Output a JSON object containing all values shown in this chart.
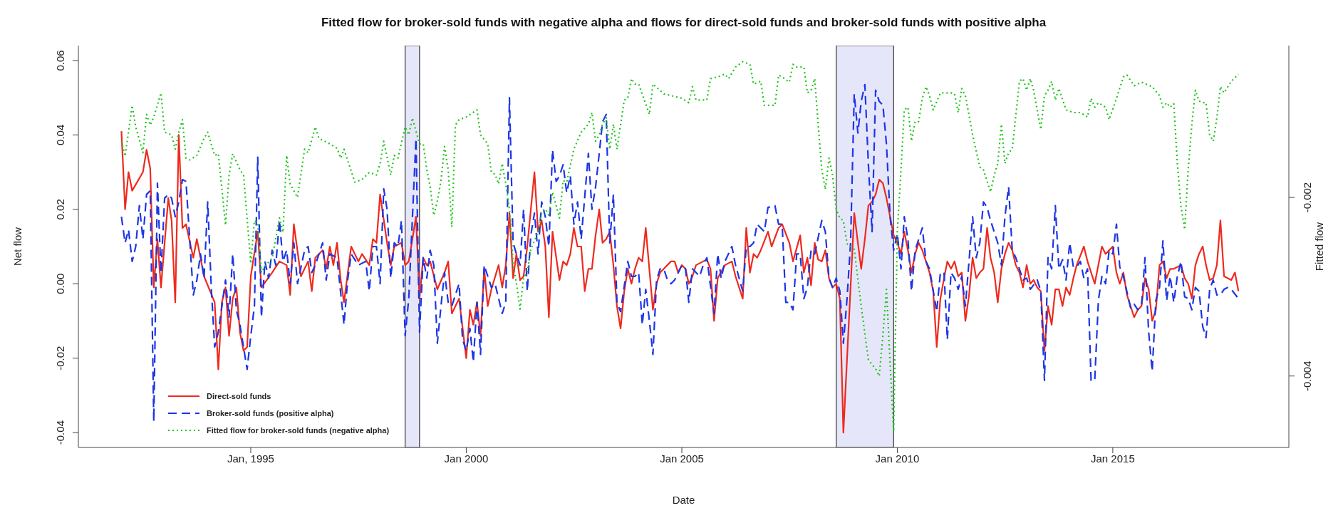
{
  "chart_data": {
    "type": "line",
    "title": "Fitted flow for broker-sold funds with negative alpha and flows for direct-sold funds and broker-sold funds with positive alpha",
    "xlabel": "Date",
    "ylabel": "Net flow",
    "y2label": "Fitted flow",
    "xlim": [
      "1991-01",
      "2019-02"
    ],
    "xticks": [
      {
        "value": "1995-01",
        "label": "Jan, 1995"
      },
      {
        "value": "2000-01",
        "label": "Jan 2000"
      },
      {
        "value": "2005-01",
        "label": "Jan 2005"
      },
      {
        "value": "2010-01",
        "label": "Jan 2010"
      },
      {
        "value": "2015-01",
        "label": "Jan 2015"
      }
    ],
    "ylim": [
      -0.044,
      0.064
    ],
    "yticks": [
      -0.04,
      -0.02,
      {
        "value": 0,
        "label": "0.00"
      },
      0.02,
      0.04,
      0.06
    ],
    "y2lim": [
      -0.0048,
      -0.0003
    ],
    "y2ticks": [
      -0.004,
      -0.002
    ],
    "grid": false,
    "legend": "bottom left",
    "bands": [
      {
        "axis": "x",
        "from": "1998-08",
        "to": "1998-12",
        "color": "#e6e6fa"
      },
      {
        "axis": "x",
        "from": "2008-08",
        "to": "2009-12",
        "color": "#e6e6fa"
      }
    ],
    "series": [
      {
        "name": "Direct-sold funds",
        "color": "#ee2a1e",
        "line_style": "solid",
        "x": [
          "1992-01",
          "1992-02",
          "1992-03",
          "1992-04",
          "1992-07",
          "1992-08",
          "1992-09",
          "1992-10",
          "1992-11",
          "1992-12",
          "1993-02",
          "1993-03",
          "1993-04",
          "1993-05",
          "1993-06",
          "1993-07",
          "1993-09",
          "1993-10",
          "1993-12",
          "1994-03",
          "1994-04",
          "1994-05",
          "1994-06",
          "1994-07",
          "1994-08",
          "1994-09",
          "1994-10",
          "1994-11",
          "1994-12",
          "1995-01",
          "1995-03",
          "1995-04",
          "1995-07",
          "1995-09",
          "1995-11",
          "1995-12",
          "1996-01",
          "1996-03",
          "1996-05",
          "1996-06",
          "1996-07",
          "1996-09",
          "1996-10",
          "1996-11",
          "1996-12",
          "1997-01",
          "1997-02",
          "1997-03",
          "1997-05",
          "1997-07",
          "1997-08",
          "1997-10",
          "1997-11",
          "1997-12",
          "1998-01",
          "1998-03",
          "1998-04",
          "1998-05",
          "1998-07",
          "1998-08",
          "1998-09",
          "1998-11",
          "1998-12",
          "1999-01",
          "1999-02",
          "1999-03",
          "1999-05",
          "1999-07",
          "1999-08",
          "1999-09",
          "1999-11",
          "2000-01",
          "2000-02",
          "2000-03",
          "2000-04",
          "2000-05",
          "2000-06",
          "2000-07",
          "2000-08",
          "2000-10",
          "2000-11",
          "2000-12",
          "2001-01",
          "2001-02",
          "2001-03",
          "2001-04",
          "2001-05",
          "2001-06",
          "2001-08",
          "2001-09",
          "2001-10",
          "2001-11",
          "2001-12",
          "2002-01",
          "2002-03",
          "2002-04",
          "2002-05",
          "2002-06",
          "2002-07",
          "2002-08",
          "2002-09",
          "2002-10",
          "2002-11",
          "2002-12",
          "2003-01",
          "2003-02",
          "2003-03",
          "2003-04",
          "2003-05",
          "2003-06",
          "2003-07",
          "2003-08",
          "2003-09",
          "2003-10",
          "2003-11",
          "2003-12",
          "2004-01",
          "2004-02",
          "2004-03",
          "2004-05",
          "2004-06",
          "2004-07",
          "2004-08",
          "2004-10",
          "2004-11",
          "2004-12",
          "2005-01",
          "2005-02",
          "2005-03",
          "2005-04",
          "2005-05",
          "2005-07",
          "2005-08",
          "2005-09",
          "2005-10",
          "2005-11",
          "2006-01",
          "2006-03",
          "2006-04",
          "2006-06",
          "2006-07",
          "2006-08",
          "2006-09",
          "2006-10",
          "2006-11",
          "2007-01",
          "2007-02",
          "2007-04",
          "2007-05",
          "2007-07",
          "2007-08",
          "2007-10",
          "2007-11",
          "2007-12",
          "2008-01",
          "2008-02",
          "2008-03",
          "2008-04",
          "2008-05",
          "2008-06",
          "2008-07",
          "2008-08",
          "2008-09",
          "2008-10",
          "2009-01",
          "2009-02",
          "2009-03",
          "2009-04",
          "2009-05",
          "2009-06",
          "2009-07",
          "2009-08",
          "2009-09",
          "2009-10",
          "2009-11",
          "2009-12",
          "2010-01",
          "2010-02",
          "2010-03",
          "2010-04",
          "2010-05",
          "2010-06",
          "2010-07",
          "2010-08",
          "2010-09",
          "2010-10",
          "2010-11",
          "2010-12",
          "2011-01",
          "2011-02",
          "2011-03",
          "2011-04",
          "2011-05",
          "2011-06",
          "2011-07",
          "2011-08",
          "2011-09",
          "2011-10",
          "2011-11",
          "2011-12",
          "2012-01",
          "2012-02",
          "2012-03",
          "2012-04",
          "2012-05",
          "2012-06",
          "2012-07",
          "2012-08",
          "2012-09",
          "2012-10",
          "2012-11",
          "2012-12",
          "2013-01",
          "2013-02",
          "2013-03",
          "2013-04",
          "2013-05",
          "2013-06",
          "2013-07",
          "2013-08",
          "2013-09",
          "2013-10",
          "2013-11",
          "2013-12",
          "2014-01",
          "2014-02",
          "2014-03",
          "2014-05",
          "2014-06",
          "2014-08",
          "2014-10",
          "2014-11",
          "2014-12",
          "2015-01",
          "2015-02",
          "2015-03",
          "2015-04",
          "2015-05",
          "2015-07",
          "2015-08",
          "2015-09",
          "2015-10",
          "2015-11",
          "2015-12",
          "2016-01",
          "2016-02",
          "2016-03",
          "2016-04",
          "2016-05",
          "2016-06",
          "2016-08",
          "2016-09",
          "2016-10",
          "2016-11",
          "2016-12",
          "2017-01",
          "2017-02",
          "2017-03",
          "2017-04",
          "2017-05",
          "2017-06",
          "2017-07",
          "2017-08",
          "2017-10",
          "2017-11",
          "2017-12"
        ],
        "values": [
          0.041,
          0.02,
          0.03,
          0.025,
          0.03,
          0.036,
          0.031,
          -0.001,
          0.012,
          -0.001,
          0.023,
          0.017,
          -0.005,
          0.04,
          0.015,
          0.016,
          0.007,
          0.012,
          0.002,
          -0.005,
          -0.023,
          -0.005,
          -0.001,
          -0.014,
          -0.004,
          -0.001,
          -0.013,
          -0.018,
          -0.017,
          0.002,
          0.014,
          -0.001,
          0.003,
          0.006,
          0.005,
          -0.003,
          0.016,
          0.002,
          0.006,
          -0.002,
          0.007,
          0.009,
          0.004,
          0.01,
          0.005,
          0.011,
          0.001,
          -0.005,
          0.01,
          0.006,
          0.008,
          0.005,
          0.012,
          0.011,
          0.024,
          0.011,
          0.005,
          0.01,
          0.011,
          0.005,
          0.006,
          0.018,
          -0.004,
          0.007,
          0.005,
          0.006,
          -0.0015,
          0.003,
          0.006,
          -0.008,
          -0.004,
          -0.02,
          -0.007,
          -0.011,
          -0.005,
          -0.014,
          0.004,
          -0.006,
          -0.0015,
          0.005,
          -0.001,
          0.005,
          0.019,
          0.0015,
          0.008,
          0.001,
          0.002,
          0.01,
          0.03,
          0.014,
          0.017,
          0.01,
          -0.009,
          0.014,
          0.001,
          0.006,
          0.005,
          0.008,
          0.015,
          0.01,
          0.01,
          -0.002,
          0.004,
          0.004,
          0.013,
          0.02,
          0.011,
          0.012,
          0.014,
          0.005,
          -0.006,
          -0.012,
          -0.002,
          0.004,
          0.0,
          0.004,
          0.007,
          0.006,
          0.015,
          -0.007,
          0.0,
          0.003,
          0.004,
          0.006,
          0.006,
          0.003,
          0.005,
          0.004,
          0.0,
          0.002,
          0.005,
          0.006,
          0.0065,
          0.004,
          -0.01,
          0.0015,
          0.005,
          0.006,
          0.002,
          -0.004,
          0.015,
          0.003,
          0.008,
          0.007,
          0.009,
          0.014,
          0.01,
          0.015,
          0.016,
          0.011,
          0.006,
          0.013,
          0.003,
          0.007,
          -0.0004,
          0.011,
          0.0065,
          0.006,
          0.009,
          0.0015,
          -0.001,
          0.0,
          -0.004,
          -0.04,
          0.019,
          0.011,
          0.004,
          0.012,
          0.021,
          0.022,
          0.024,
          0.028,
          0.027,
          0.023,
          0.018,
          0.013,
          0.011,
          0.008,
          0.014,
          0.009,
          0.003,
          0.008,
          0.011,
          0.009,
          0.006,
          0.003,
          -0.002,
          -0.017,
          -0.004,
          0.0015,
          0.006,
          0.004,
          0.006,
          0.002,
          0.003,
          -0.01,
          -0.003,
          0.007,
          0.0015,
          0.003,
          0.004,
          0.015,
          0.007,
          0.003,
          -0.005,
          0.004,
          0.008,
          0.011,
          0.009,
          0.005,
          0.003,
          -0.001,
          0.005,
          0.0,
          0.001,
          -0.001,
          -0.002,
          -0.018,
          -0.006,
          -0.011,
          -0.0015,
          -0.0015,
          -0.006,
          -0.001,
          -0.003,
          0.0015,
          0.005,
          0.01,
          0.006,
          0.0,
          0.01,
          0.008,
          0.009,
          0.01,
          0.003,
          0.0,
          0.003,
          -0.003,
          -0.009,
          -0.007,
          -0.006,
          0.0015,
          -0.0015,
          -0.01,
          -0.007,
          0.005,
          0.006,
          0.0015,
          0.004,
          0.004,
          0.005,
          0.0015,
          0.0,
          -0.004,
          0.005,
          0.008,
          0.01,
          0.005,
          0.001,
          0.0015,
          0.005,
          0.017,
          0.002,
          0.001,
          0.003,
          -0.002
        ]
      },
      {
        "name": "Broker-sold funds (positive alpha)",
        "color": "#1c36e6",
        "line_style": "dashed",
        "x": [
          "1992-01",
          "1992-02",
          "1992-03",
          "1992-04",
          "1992-05",
          "1992-06",
          "1992-07",
          "1992-08",
          "1992-09",
          "1992-10",
          "1992-11",
          "1992-12",
          "1993-01",
          "1993-02",
          "1993-03",
          "1993-04",
          "1993-05",
          "1993-06",
          "1993-07",
          "1993-09",
          "1993-10",
          "1993-11",
          "1993-12",
          "1994-01",
          "1994-02",
          "1994-03",
          "1994-04",
          "1994-06",
          "1994-07",
          "1994-08",
          "1994-09",
          "1994-10",
          "1994-12",
          "1995-01",
          "1995-02",
          "1995-03",
          "1995-04",
          "1995-05",
          "1995-06",
          "1995-07",
          "1995-08",
          "1995-09",
          "1995-10",
          "1995-11",
          "1995-12",
          "1996-01",
          "1996-02",
          "1996-04",
          "1996-05",
          "1996-06",
          "1996-07",
          "1996-09",
          "1996-10",
          "1996-11",
          "1997-01",
          "1997-03",
          "1997-04",
          "1997-05",
          "1997-07",
          "1997-09",
          "1997-10",
          "1997-11",
          "1997-12",
          "1998-01",
          "1998-02",
          "1998-03",
          "1998-04",
          "1998-05",
          "1998-06",
          "1998-07",
          "1998-08",
          "1998-09",
          "1998-11",
          "1998-12",
          "1999-01",
          "1999-02",
          "1999-03",
          "1999-04",
          "1999-05",
          "1999-06",
          "1999-07",
          "1999-08",
          "1999-09",
          "1999-10",
          "1999-11",
          "1999-12",
          "2000-01",
          "2000-02",
          "2000-03",
          "2000-04",
          "2000-05",
          "2000-06",
          "2000-08",
          "2000-09",
          "2000-11",
          "2000-12",
          "2001-01",
          "2001-02",
          "2001-03",
          "2001-04",
          "2001-05",
          "2001-06",
          "2001-07",
          "2001-08",
          "2001-09",
          "2001-10",
          "2001-11",
          "2001-12",
          "2002-01",
          "2002-02",
          "2002-03",
          "2002-04",
          "2002-05",
          "2002-06",
          "2002-07",
          "2002-08",
          "2002-09",
          "2002-11",
          "2002-12",
          "2003-01",
          "2003-02",
          "2003-03",
          "2003-04",
          "2003-05",
          "2003-06",
          "2003-07",
          "2003-08",
          "2003-10",
          "2003-11",
          "2003-12",
          "2004-01",
          "2004-02",
          "2004-03",
          "2004-04",
          "2004-05",
          "2004-06",
          "2004-07",
          "2004-08",
          "2004-09",
          "2004-10",
          "2004-11",
          "2005-01",
          "2005-02",
          "2005-03",
          "2005-04",
          "2005-06",
          "2005-07",
          "2005-08",
          "2005-10",
          "2005-11",
          "2005-12",
          "2006-01",
          "2006-03",
          "2006-04",
          "2006-06",
          "2006-07",
          "2006-08",
          "2006-09",
          "2006-10",
          "2006-12",
          "2007-01",
          "2007-03",
          "2007-04",
          "2007-05",
          "2007-06",
          "2007-07",
          "2007-08",
          "2007-09",
          "2007-10",
          "2007-11",
          "2007-12",
          "2008-01",
          "2008-02",
          "2008-04",
          "2008-05",
          "2008-06",
          "2008-07",
          "2008-08",
          "2008-09",
          "2008-10",
          "2008-11",
          "2008-12",
          "2009-01",
          "2009-02",
          "2009-03",
          "2009-04",
          "2009-05",
          "2009-06",
          "2009-07",
          "2009-08",
          "2009-09",
          "2009-10",
          "2009-11",
          "2009-12",
          "2010-01",
          "2010-02",
          "2010-03",
          "2010-04",
          "2010-05",
          "2010-06",
          "2010-08",
          "2010-09",
          "2010-10",
          "2010-12",
          "2011-01",
          "2011-02",
          "2011-03",
          "2011-04",
          "2011-05",
          "2011-06",
          "2011-07",
          "2011-08",
          "2011-10",
          "2011-11",
          "2011-12",
          "2012-01",
          "2012-02",
          "2012-03",
          "2012-05",
          "2012-06",
          "2012-07",
          "2012-08",
          "2012-09",
          "2012-10",
          "2012-12",
          "2013-01",
          "2013-02",
          "2013-04",
          "2013-05",
          "2013-06",
          "2013-07",
          "2013-08",
          "2013-09",
          "2013-10",
          "2013-11",
          "2013-12",
          "2014-01",
          "2014-02",
          "2014-03",
          "2014-04",
          "2014-05",
          "2014-06",
          "2014-07",
          "2014-08",
          "2014-09",
          "2014-10",
          "2014-11",
          "2014-12",
          "2015-01",
          "2015-02",
          "2015-03",
          "2015-04",
          "2015-06",
          "2015-07",
          "2015-08",
          "2015-09",
          "2015-10",
          "2015-11",
          "2015-12",
          "2016-01",
          "2016-02",
          "2016-03",
          "2016-04",
          "2016-05",
          "2016-06",
          "2016-07",
          "2016-08",
          "2016-09",
          "2016-10",
          "2016-11",
          "2016-12",
          "2017-01",
          "2017-02",
          "2017-03",
          "2017-04",
          "2017-05",
          "2017-06",
          "2017-07",
          "2017-08",
          "2017-09",
          "2017-10",
          "2017-12"
        ],
        "values": [
          0.018,
          0.011,
          0.0145,
          0.006,
          0.01,
          0.021,
          0.012,
          0.024,
          0.025,
          -0.037,
          0.027,
          0.003,
          0.023,
          0.024,
          0.023,
          0.018,
          0.022,
          0.028,
          0.0275,
          -0.003,
          0.001,
          0.008,
          0.0015,
          0.022,
          -0.0015,
          -0.017,
          -0.013,
          0.001,
          -0.009,
          0.008,
          -0.007,
          -0.011,
          -0.023,
          -0.014,
          -0.006,
          0.034,
          -0.009,
          0.006,
          0.0015,
          0.009,
          0.005,
          0.017,
          0.006,
          0.009,
          0.0,
          0.011,
          0.0,
          0.009,
          0.01,
          0.003,
          0.005,
          0.011,
          0.001,
          0.008,
          0.007,
          -0.011,
          0.001,
          0.008,
          0.005,
          0.006,
          -0.002,
          0.01,
          0.01,
          0.0,
          0.0255,
          0.02,
          0.0015,
          0.011,
          0.01,
          0.017,
          -0.014,
          -0.004,
          0.039,
          -0.013,
          0.007,
          0.0015,
          0.009,
          0.005,
          -0.016,
          -0.006,
          0.003,
          -0.005,
          -0.006,
          -0.003,
          0.0,
          -0.015,
          -0.018,
          -0.012,
          -0.021,
          -0.005,
          -0.019,
          0.005,
          -0.001,
          0.0,
          -0.008,
          -0.005,
          0.05,
          0.011,
          0.008,
          0.005,
          0.02,
          -0.002,
          0.013,
          0.019,
          0.008,
          0.022,
          0.018,
          0.01,
          0.036,
          0.0275,
          0.029,
          0.032,
          0.0245,
          0.029,
          0.016,
          0.022,
          0.012,
          0.035,
          0.02,
          0.026,
          0.035,
          0.0435,
          0.0455,
          0.011,
          0.024,
          -0.005,
          -0.0075,
          0.006,
          0.002,
          0.002,
          0.003,
          -0.011,
          -0.0015,
          -0.01,
          -0.019,
          0.001,
          0.004,
          0.004,
          0.001,
          0.0,
          0.001,
          0.005,
          0.004,
          -0.005,
          0.004,
          0.002,
          0.005,
          0.007,
          -0.008,
          0.008,
          0.0015,
          0.006,
          0.01,
          0.005,
          -0.002,
          0.01,
          0.01,
          0.011,
          0.016,
          0.014,
          0.0205,
          0.021,
          0.016,
          0.016,
          -0.005,
          -0.005,
          -0.007,
          0.008,
          0.008,
          -0.004,
          -0.001,
          0.009,
          0.008,
          0.017,
          0.014,
          0.0015,
          -0.001,
          0.0015,
          -0.002,
          -0.016,
          -0.004,
          0.011,
          0.051,
          0.0405,
          0.049,
          0.0535,
          0.032,
          0.014,
          0.052,
          0.049,
          0.048,
          0.0375,
          0.018,
          0.009,
          0.0135,
          0.004,
          0.018,
          0.012,
          -0.002,
          0.009,
          0.015,
          0.006,
          0.004,
          -0.0075,
          0.003,
          0.003,
          -0.015,
          0.003,
          0.0015,
          -0.0015,
          0.002,
          -0.006,
          0.018,
          0.007,
          0.011,
          0.022,
          0.0205,
          0.017,
          0.011,
          0.005,
          0.018,
          0.026,
          0.009,
          0.007,
          0.001,
          0.0015,
          -0.0015,
          0.001,
          -0.002,
          -0.026,
          0.007,
          0.004,
          0.021,
          0.004,
          0.0065,
          0.001,
          0.011,
          0.0045,
          0.0045,
          0.006,
          0.0015,
          0.004,
          -0.026,
          -0.026,
          -0.0045,
          0.002,
          0.0,
          0.009,
          0.008,
          0.016,
          0.0045,
          0.002,
          -0.0065,
          -0.0055,
          -0.007,
          -0.006,
          0.007,
          -0.013,
          -0.0235,
          -0.0045,
          -0.001,
          0.0115,
          -0.0045,
          0.002,
          -0.005,
          0.002,
          0.006,
          -0.0035,
          -0.004,
          -0.007,
          -0.001,
          -0.002,
          -0.0115,
          -0.0145,
          -0.0015,
          0.001,
          -0.003,
          -0.003,
          -0.0015,
          -0.001,
          -0.0015,
          -0.004
        ]
      },
      {
        "name": "Fitted flow for broker-sold funds (negative alpha)",
        "color": "#20c41c",
        "line_style": "dotted",
        "axis": "y2",
        "x": [
          "1992-01",
          "1992-02",
          "1992-04",
          "1992-05",
          "1992-07",
          "1992-08",
          "1992-09",
          "1992-10",
          "1992-12",
          "1993-01",
          "1993-03",
          "1993-04",
          "1993-05",
          "1993-06",
          "1993-07",
          "1993-08",
          "1993-10",
          "1993-12",
          "1994-01",
          "1994-03",
          "1994-04",
          "1994-06",
          "1994-07",
          "1994-08",
          "1994-10",
          "1994-11",
          "1995-01",
          "1995-02",
          "1995-03",
          "1995-04",
          "1995-05",
          "1995-07",
          "1995-09",
          "1995-10",
          "1995-11",
          "1995-12",
          "1996-02",
          "1996-04",
          "1996-05",
          "1996-07",
          "1996-08",
          "1996-11",
          "1997-01",
          "1997-02",
          "1997-03",
          "1997-06",
          "1997-08",
          "1997-10",
          "1997-12",
          "1998-01",
          "1998-02",
          "1998-04",
          "1998-05",
          "1998-06",
          "1998-08",
          "1998-09",
          "1998-10",
          "1998-12",
          "1999-01",
          "1999-02",
          "1999-03",
          "1999-04",
          "1999-05",
          "1999-06",
          "1999-07",
          "1999-08",
          "1999-09",
          "1999-10",
          "1999-11",
          "2000-01",
          "2000-04",
          "2000-05",
          "2000-07",
          "2000-08",
          "2000-09",
          "2000-10",
          "2000-11",
          "2000-12",
          "2001-01",
          "2001-02",
          "2001-03",
          "2001-04",
          "2001-05",
          "2001-06",
          "2001-07",
          "2001-09",
          "2001-10",
          "2001-11",
          "2001-12",
          "2002-01",
          "2002-03",
          "2002-04",
          "2002-05",
          "2002-07",
          "2002-09",
          "2002-11",
          "2002-12",
          "2003-01",
          "2003-02",
          "2003-03",
          "2003-04",
          "2003-05",
          "2003-06",
          "2003-07",
          "2003-09",
          "2003-10",
          "2003-11",
          "2003-12",
          "2004-01",
          "2004-04",
          "2004-05",
          "2004-08",
          "2004-11",
          "2005-01",
          "2005-03",
          "2005-04",
          "2005-05",
          "2005-08",
          "2005-09",
          "2005-11",
          "2006-01",
          "2006-02",
          "2006-04",
          "2006-06",
          "2006-08",
          "2006-09",
          "2006-11",
          "2006-12",
          "2007-02",
          "2007-03",
          "2007-04",
          "2007-05",
          "2007-07",
          "2007-08",
          "2007-09",
          "2007-11",
          "2007-12",
          "2008-01",
          "2008-02",
          "2008-03",
          "2008-04",
          "2008-05",
          "2008-06",
          "2008-07",
          "2008-08",
          "2008-09",
          "2008-10",
          "2008-11",
          "2009-01",
          "2009-03",
          "2009-05",
          "2009-07",
          "2009-08",
          "2009-09",
          "2009-10",
          "2009-11",
          "2009-12",
          "2010-01",
          "2010-02",
          "2010-03",
          "2010-04",
          "2010-05",
          "2010-06",
          "2010-07",
          "2010-08",
          "2010-09",
          "2010-10",
          "2010-11",
          "2011-01",
          "2011-04",
          "2011-05",
          "2011-06",
          "2011-07",
          "2011-08",
          "2011-10",
          "2011-12",
          "2012-01",
          "2012-03",
          "2012-04",
          "2012-05",
          "2012-06",
          "2012-07",
          "2012-08",
          "2012-09",
          "2012-11",
          "2012-12",
          "2013-01",
          "2013-02",
          "2013-03",
          "2013-05",
          "2013-06",
          "2013-07",
          "2013-08",
          "2013-09",
          "2013-10",
          "2013-12",
          "2014-02",
          "2014-04",
          "2014-06",
          "2014-07",
          "2014-08",
          "2014-09",
          "2014-11",
          "2014-12",
          "2015-02",
          "2015-04",
          "2015-05",
          "2015-07",
          "2015-09",
          "2015-12",
          "2016-02",
          "2016-03",
          "2016-04",
          "2016-05",
          "2016-06",
          "2016-07",
          "2016-08",
          "2016-09",
          "2016-10",
          "2016-11",
          "2016-12",
          "2017-01",
          "2017-02",
          "2017-03",
          "2017-04",
          "2017-05",
          "2017-06",
          "2017-07",
          "2017-08",
          "2017-10",
          "2017-12"
        ],
        "values": [
          -0.00137,
          -0.00154,
          -0.00097,
          -0.00121,
          -0.0015,
          -0.00107,
          -0.00119,
          -0.0011,
          -0.00083,
          -0.00127,
          -0.0013,
          -0.00146,
          -0.00127,
          -0.00113,
          -0.00156,
          -0.00158,
          -0.00153,
          -0.00134,
          -0.00127,
          -0.00153,
          -0.00151,
          -0.00231,
          -0.00175,
          -0.00151,
          -0.00169,
          -0.00175,
          -0.00274,
          -0.00226,
          -0.00229,
          -0.00284,
          -0.00277,
          -0.00268,
          -0.00223,
          -0.00239,
          -0.00153,
          -0.00185,
          -0.002,
          -0.00146,
          -0.0015,
          -0.00121,
          -0.00134,
          -0.0014,
          -0.00145,
          -0.00156,
          -0.00146,
          -0.00183,
          -0.0018,
          -0.00172,
          -0.00175,
          -0.00162,
          -0.00137,
          -0.00175,
          -0.00153,
          -0.00156,
          -0.00121,
          -0.0013,
          -0.00111,
          -0.0014,
          -0.0014,
          -0.00169,
          -0.00188,
          -0.0022,
          -0.00204,
          -0.00181,
          -0.00143,
          -0.00169,
          -0.00233,
          -0.00119,
          -0.00113,
          -0.0011,
          -0.00102,
          -0.0013,
          -0.0014,
          -0.00172,
          -0.00174,
          -0.00185,
          -0.00162,
          -0.00185,
          -0.00213,
          -0.00274,
          -0.00296,
          -0.00325,
          -0.0029,
          -0.00284,
          -0.00258,
          -0.00239,
          -0.00217,
          -0.00213,
          -0.0022,
          -0.00194,
          -0.00223,
          -0.00181,
          -0.00183,
          -0.00146,
          -0.00127,
          -0.00118,
          -0.00105,
          -0.00137,
          -0.0013,
          -0.00118,
          -0.00111,
          -0.00146,
          -0.00118,
          -0.00146,
          -0.00091,
          -0.00089,
          -0.00067,
          -0.00073,
          -0.00073,
          -0.00107,
          -0.00073,
          -0.00084,
          -0.00087,
          -0.00089,
          -0.00094,
          -0.00076,
          -0.00091,
          -0.00091,
          -0.00067,
          -0.00065,
          -0.00062,
          -0.00067,
          -0.00054,
          -0.00048,
          -0.00051,
          -0.00073,
          -0.0007,
          -0.00097,
          -0.00097,
          -0.00097,
          -0.00063,
          -0.00065,
          -0.00071,
          -0.00051,
          -0.00054,
          -0.00054,
          -0.00083,
          -0.0008,
          -0.00067,
          -0.00118,
          -0.00169,
          -0.00191,
          -0.00156,
          -0.00175,
          -0.00213,
          -0.00223,
          -0.00226,
          -0.00252,
          -0.00258,
          -0.00322,
          -0.00382,
          -0.00392,
          -0.004,
          -0.00354,
          -0.00303,
          -0.00386,
          -0.00462,
          -0.00239,
          -0.00169,
          -0.00102,
          -0.00099,
          -0.00137,
          -0.00115,
          -0.00115,
          -0.00089,
          -0.00076,
          -0.00086,
          -0.00102,
          -0.00083,
          -0.00083,
          -0.00084,
          -0.00105,
          -0.00078,
          -0.00086,
          -0.0013,
          -0.00166,
          -0.00169,
          -0.00194,
          -0.00175,
          -0.00162,
          -0.00118,
          -0.00162,
          -0.0015,
          -0.00146,
          -0.0007,
          -0.00067,
          -0.0008,
          -0.00067,
          -0.0008,
          -0.00124,
          -0.00086,
          -0.0008,
          -0.0007,
          -0.00091,
          -0.00078,
          -0.00102,
          -0.00105,
          -0.00105,
          -0.0011,
          -0.00089,
          -0.00099,
          -0.00094,
          -0.00099,
          -0.00113,
          -0.00089,
          -0.00065,
          -0.00063,
          -0.00075,
          -0.00071,
          -0.00076,
          -0.00086,
          -0.00099,
          -0.00094,
          -0.00099,
          -0.00095,
          -0.00162,
          -0.0021,
          -0.00236,
          -0.00169,
          -0.00118,
          -0.0008,
          -0.00092,
          -0.00094,
          -0.00094,
          -0.0013,
          -0.00137,
          -0.00111,
          -0.00076,
          -0.00083,
          -0.0007,
          -0.00062
        ]
      }
    ]
  }
}
